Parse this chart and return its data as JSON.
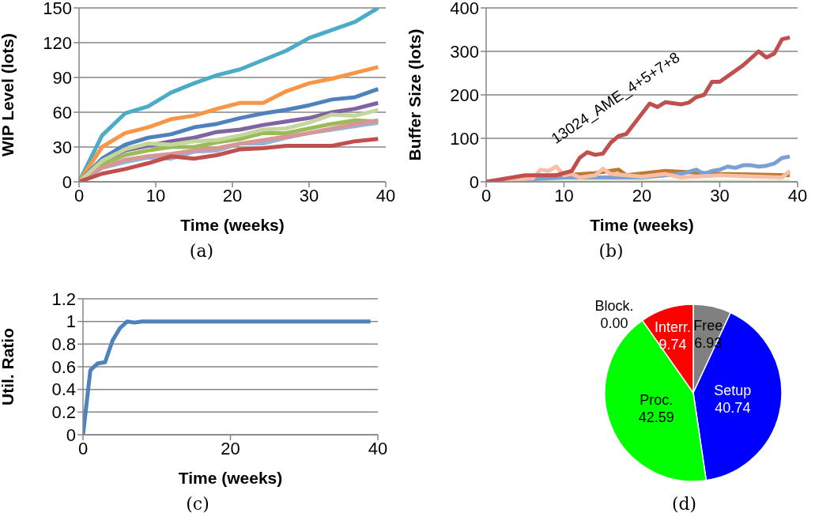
{
  "chart_data": [
    {
      "type": "line",
      "title": "(a)",
      "xlabel": "Time (weeks)",
      "ylabel": "WIP Level (lots)",
      "xlim": [
        0,
        40
      ],
      "xticks": [
        0,
        10,
        20,
        30,
        40
      ],
      "ylim": [
        0,
        150
      ],
      "yticks": [
        0,
        30,
        60,
        90,
        120,
        150
      ],
      "grid": "y",
      "marker": "none",
      "line_style": "solid",
      "x": [
        0,
        3,
        6,
        9,
        12,
        15,
        18,
        21,
        24,
        27,
        30,
        33,
        36,
        39
      ],
      "series": [
        {
          "color": "#4bacc6",
          "values": [
            0,
            40,
            59,
            65,
            77,
            85,
            92,
            97,
            105,
            113,
            124,
            131,
            138,
            150
          ]
        },
        {
          "color": "#f79646",
          "values": [
            0,
            30,
            42,
            47,
            54,
            57,
            63,
            68,
            68,
            78,
            85,
            89,
            94,
            99
          ]
        },
        {
          "color": "#4f81bd",
          "values": [
            0,
            20,
            32,
            38,
            41,
            47,
            50,
            55,
            59,
            62,
            66,
            71,
            73,
            80
          ]
        },
        {
          "color": "#8064a2",
          "values": [
            0,
            18,
            27,
            31,
            35,
            38,
            43,
            45,
            49,
            52,
            55,
            60,
            63,
            68
          ]
        },
        {
          "color": "#9bbb59",
          "values": [
            0,
            15,
            23,
            27,
            30,
            30,
            34,
            37,
            42,
            42,
            46,
            50,
            53,
            52
          ]
        },
        {
          "color": "#95b3d7",
          "values": [
            0,
            12,
            17,
            21,
            20,
            26,
            27,
            33,
            33,
            38,
            42,
            45,
            48,
            51
          ]
        },
        {
          "color": "#d99694",
          "values": [
            0,
            12,
            19,
            22,
            24,
            27,
            29,
            33,
            36,
            39,
            42,
            46,
            50,
            53
          ]
        },
        {
          "color": "#c3d69b",
          "values": [
            0,
            18,
            28,
            33,
            32,
            35,
            36,
            40,
            45,
            46,
            51,
            58,
            57,
            62
          ]
        },
        {
          "color": "#c0504d",
          "values": [
            0,
            7,
            11,
            16,
            22,
            20,
            23,
            28,
            29,
            31,
            31,
            31,
            35,
            37
          ]
        }
      ]
    },
    {
      "type": "line",
      "title": "(b)",
      "xlabel": "Time (weeks)",
      "ylabel": "Buffer Size (lots)",
      "xlim": [
        0,
        40
      ],
      "xticks": [
        0,
        10,
        20,
        30,
        40
      ],
      "ylim": [
        0,
        400
      ],
      "yticks": [
        0,
        100,
        200,
        300,
        400
      ],
      "grid": "y",
      "marker": "none",
      "line_style": "solid",
      "series": [
        {
          "color": "#d8e4cc",
          "x": [
            0,
            39
          ],
          "values": [
            0,
            0
          ]
        },
        {
          "color": "#c0782d",
          "x": [
            0,
            5,
            10,
            14,
            17,
            18,
            23,
            30,
            39
          ],
          "values": [
            0,
            12,
            15,
            20,
            28,
            15,
            25,
            18,
            15
          ]
        },
        {
          "color": "#7ba0d3",
          "x": [
            0,
            10,
            20,
            25,
            27,
            28,
            29,
            30,
            31,
            32,
            33,
            34,
            35,
            36,
            37,
            38,
            39
          ],
          "values": [
            0,
            10,
            10,
            18,
            28,
            18,
            25,
            28,
            35,
            32,
            38,
            38,
            35,
            37,
            42,
            55,
            58
          ]
        },
        {
          "color": "#f9bea6",
          "x": [
            0,
            6,
            7,
            8,
            9,
            10,
            11,
            12,
            14,
            15,
            16,
            20,
            23,
            25,
            30,
            38,
            39
          ],
          "values": [
            0,
            8,
            28,
            25,
            35,
            15,
            18,
            10,
            15,
            30,
            18,
            12,
            18,
            10,
            15,
            10,
            25
          ]
        },
        {
          "name": "13024_AME_4+5+7+8",
          "color": "#c0504d",
          "x": [
            0,
            5,
            9,
            11,
            12,
            13,
            14,
            15,
            16,
            17,
            18,
            21,
            22,
            23,
            25,
            26,
            27,
            28,
            29,
            30,
            33,
            35,
            36,
            37,
            38,
            39
          ],
          "values": [
            0,
            15,
            15,
            25,
            55,
            68,
            62,
            65,
            90,
            105,
            110,
            180,
            172,
            183,
            178,
            182,
            195,
            200,
            230,
            230,
            268,
            300,
            286,
            295,
            328,
            332
          ]
        }
      ]
    },
    {
      "type": "line",
      "title": "(c)",
      "xlabel": "Time (weeks)",
      "ylabel": "Util. Ratio",
      "xlim": [
        0,
        40
      ],
      "xticks": [
        0,
        20,
        40
      ],
      "ylim": [
        0,
        1.2
      ],
      "yticks": [
        0,
        0.2,
        0.4,
        0.6,
        0.8,
        1,
        1.2
      ],
      "grid": "y",
      "marker": "none",
      "line_style": "solid",
      "series": [
        {
          "color": "#4f81bd",
          "x": [
            0,
            1,
            2,
            3,
            4,
            5,
            6,
            7,
            8,
            39
          ],
          "values": [
            0,
            0.57,
            0.63,
            0.64,
            0.83,
            0.94,
            1,
            0.99,
            1,
            1
          ]
        }
      ]
    },
    {
      "type": "pie",
      "title": "(d)",
      "categories": [
        "Free",
        "Setup",
        "Proc.",
        "Block.",
        "Interr."
      ],
      "values": [
        6.93,
        40.74,
        42.59,
        0,
        9.74
      ],
      "colors": [
        "#808080",
        "#0000ff",
        "#00ff00",
        "#ffc000",
        "#ff0000"
      ],
      "value_labels": [
        "6.93",
        "40.74",
        "42.59",
        "0.00",
        "9.74"
      ]
    }
  ]
}
